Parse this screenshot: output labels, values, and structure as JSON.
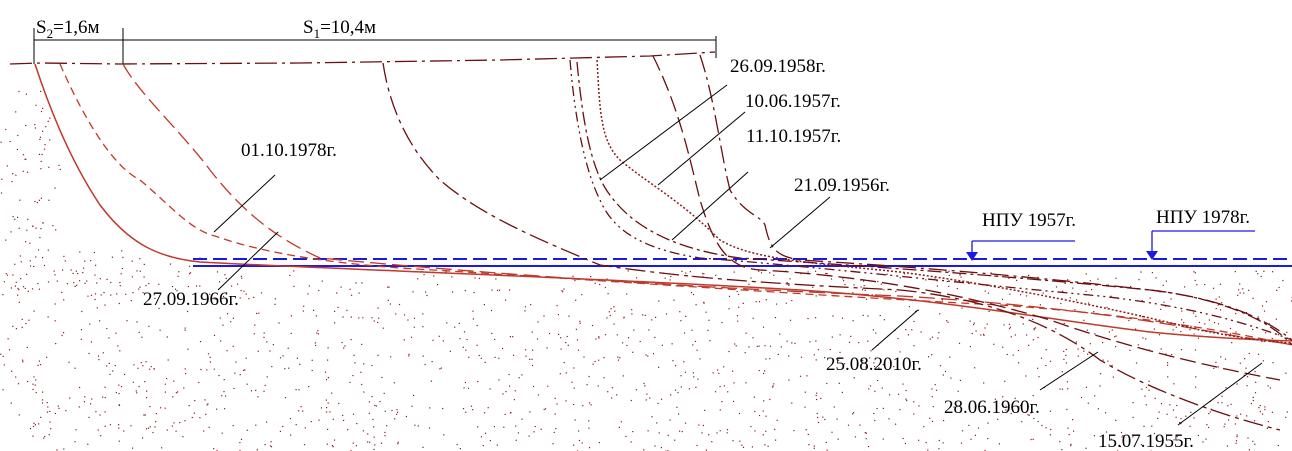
{
  "dimensions": {
    "s2": {
      "base": "S",
      "sub": "2",
      "value": "=1,6м"
    },
    "s1": {
      "base": "S",
      "sub": "1",
      "value": "=10,4м"
    }
  },
  "water_levels": [
    {
      "label": "НПУ 1957г.",
      "color": "#1a1ae6"
    },
    {
      "label": "НПУ 1978г.",
      "color": "#1a1ae6"
    }
  ],
  "profiles": [
    {
      "date": "15.07.1955г.",
      "color": "#6b0f0f"
    },
    {
      "date": "21.09.1956г.",
      "color": "#6b0f0f"
    },
    {
      "date": "10.06.1957г.",
      "color": "#8b1a1a"
    },
    {
      "date": "11.10.1957г.",
      "color": "#6b0f0f"
    },
    {
      "date": "26.09.1958г.",
      "color": "#6b0f0f"
    },
    {
      "date": "28.06.1960г.",
      "color": "#6b0f0f"
    },
    {
      "date": "27.09.1966г.",
      "color": "#c0392b"
    },
    {
      "date": "01.10.1978г.",
      "color": "#c0392b"
    },
    {
      "date": "25.08.2010г.",
      "color": "#c0392b"
    }
  ],
  "soil_color": "#8b1a1a"
}
